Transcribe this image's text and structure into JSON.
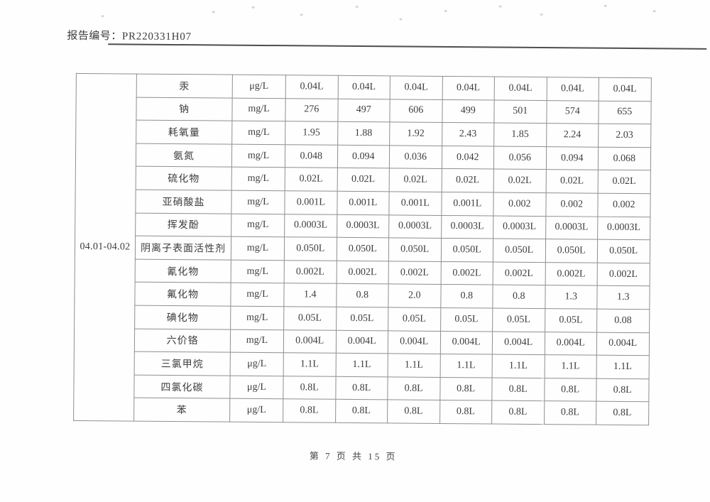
{
  "header": {
    "report_label": "报告编号：",
    "report_number": "PR220331H07"
  },
  "table": {
    "date_range": "04.01-04.02",
    "rows": [
      {
        "param": "汞",
        "unit": "μg/L",
        "values": [
          "0.04L",
          "0.04L",
          "0.04L",
          "0.04L",
          "0.04L",
          "0.04L",
          "0.04L"
        ]
      },
      {
        "param": "钠",
        "unit": "mg/L",
        "values": [
          "276",
          "497",
          "606",
          "499",
          "501",
          "574",
          "655"
        ]
      },
      {
        "param": "耗氧量",
        "unit": "mg/L",
        "values": [
          "1.95",
          "1.88",
          "1.92",
          "2.43",
          "1.85",
          "2.24",
          "2.03"
        ]
      },
      {
        "param": "氨氮",
        "unit": "mg/L",
        "values": [
          "0.048",
          "0.094",
          "0.036",
          "0.042",
          "0.056",
          "0.094",
          "0.068"
        ]
      },
      {
        "param": "硫化物",
        "unit": "mg/L",
        "values": [
          "0.02L",
          "0.02L",
          "0.02L",
          "0.02L",
          "0.02L",
          "0.02L",
          "0.02L"
        ]
      },
      {
        "param": "亚硝酸盐",
        "unit": "mg/L",
        "values": [
          "0.001L",
          "0.001L",
          "0.001L",
          "0.001L",
          "0.002",
          "0.002",
          "0.002"
        ]
      },
      {
        "param": "挥发酚",
        "unit": "mg/L",
        "values": [
          "0.0003L",
          "0.0003L",
          "0.0003L",
          "0.0003L",
          "0.0003L",
          "0.0003L",
          "0.0003L"
        ]
      },
      {
        "param": "阴离子表面活性剂",
        "unit": "mg/L",
        "values": [
          "0.050L",
          "0.050L",
          "0.050L",
          "0.050L",
          "0.050L",
          "0.050L",
          "0.050L"
        ]
      },
      {
        "param": "氰化物",
        "unit": "mg/L",
        "values": [
          "0.002L",
          "0.002L",
          "0.002L",
          "0.002L",
          "0.002L",
          "0.002L",
          "0.002L"
        ]
      },
      {
        "param": "氟化物",
        "unit": "mg/L",
        "values": [
          "1.4",
          "0.8",
          "2.0",
          "0.8",
          "0.8",
          "1.3",
          "1.3"
        ]
      },
      {
        "param": "碘化物",
        "unit": "mg/L",
        "values": [
          "0.05L",
          "0.05L",
          "0.05L",
          "0.05L",
          "0.05L",
          "0.05L",
          "0.08"
        ]
      },
      {
        "param": "六价铬",
        "unit": "mg/L",
        "values": [
          "0.004L",
          "0.004L",
          "0.004L",
          "0.004L",
          "0.004L",
          "0.004L",
          "0.004L"
        ]
      },
      {
        "param": "三氯甲烷",
        "unit": "μg/L",
        "values": [
          "1.1L",
          "1.1L",
          "1.1L",
          "1.1L",
          "1.1L",
          "1.1L",
          "1.1L"
        ]
      },
      {
        "param": "四氯化碳",
        "unit": "μg/L",
        "values": [
          "0.8L",
          "0.8L",
          "0.8L",
          "0.8L",
          "0.8L",
          "0.8L",
          "0.8L"
        ]
      },
      {
        "param": "苯",
        "unit": "μg/L",
        "values": [
          "0.8L",
          "0.8L",
          "0.8L",
          "0.8L",
          "0.8L",
          "0.8L",
          "0.8L"
        ]
      }
    ]
  },
  "footer": {
    "text": "第 7 页 共 15 页"
  }
}
